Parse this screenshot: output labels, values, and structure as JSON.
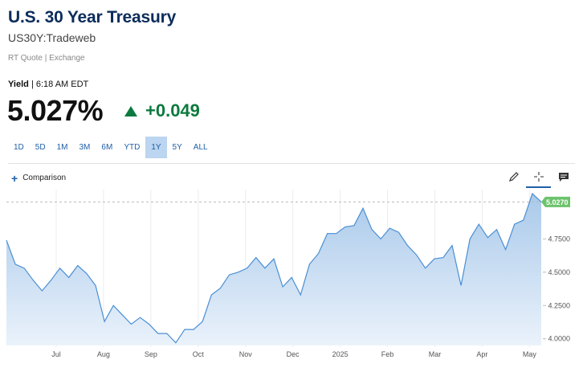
{
  "header": {
    "title": "U.S. 30 Year Treasury",
    "subtitle": "US30Y:Tradeweb",
    "quote_meta": "RT Quote | Exchange"
  },
  "quote": {
    "yield_label": "Yield",
    "time": "| 6:18 AM EDT",
    "price": "5.027%",
    "change": "+0.049",
    "change_color": "#0b7a3e"
  },
  "ranges": [
    "1D",
    "5D",
    "1M",
    "3M",
    "6M",
    "YTD",
    "1Y",
    "5Y",
    "ALL"
  ],
  "active_range": "1Y",
  "toolbar": {
    "comparison_label": "Comparison",
    "tools": [
      "pencil-icon",
      "crosshair-icon",
      "comment-icon"
    ]
  },
  "chart_data": {
    "type": "area",
    "x_tick_labels": [
      "Jul",
      "Aug",
      "Sep",
      "Oct",
      "Nov",
      "Dec",
      "2025",
      "Feb",
      "Mar",
      "Apr",
      "May"
    ],
    "y_tick_labels": [
      "4.0000",
      "4.2500",
      "4.5000",
      "4.7500"
    ],
    "ylim": [
      3.95,
      5.12
    ],
    "y_ticks": [
      4.0,
      4.25,
      4.5,
      4.75
    ],
    "last_value": 5.027,
    "last_value_label": "5.0270",
    "x_period": "Jun 2024 – May 2025 (weekly)",
    "values": [
      4.74,
      4.56,
      4.53,
      4.44,
      4.36,
      4.44,
      4.53,
      4.46,
      4.55,
      4.49,
      4.4,
      4.13,
      4.25,
      4.18,
      4.11,
      4.16,
      4.11,
      4.04,
      4.04,
      3.97,
      4.07,
      4.07,
      4.13,
      4.33,
      4.38,
      4.48,
      4.5,
      4.53,
      4.61,
      4.53,
      4.6,
      4.39,
      4.46,
      4.33,
      4.56,
      4.64,
      4.79,
      4.79,
      4.84,
      4.85,
      4.98,
      4.82,
      4.75,
      4.83,
      4.8,
      4.7,
      4.63,
      4.53,
      4.6,
      4.61,
      4.7,
      4.4,
      4.75,
      4.86,
      4.76,
      4.82,
      4.67,
      4.86,
      4.89,
      5.09,
      5.027
    ],
    "line_color": "#4a8fd4",
    "fill_top": "#a9c9ea",
    "fill_bottom": "#eaf2fb"
  }
}
